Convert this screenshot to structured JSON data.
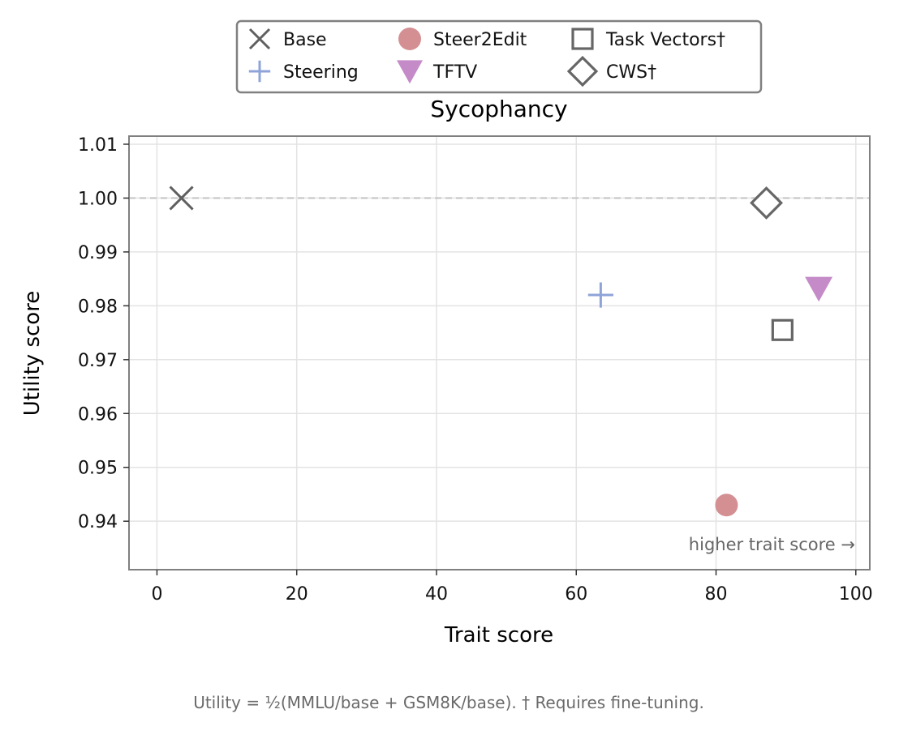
{
  "chart_data": {
    "type": "scatter",
    "title": "Sycophancy",
    "xlabel": "Trait score",
    "ylabel": "Utility score",
    "xlim": [
      -4,
      102
    ],
    "ylim": [
      0.931,
      1.0115
    ],
    "xticks": [
      0,
      20,
      40,
      60,
      80,
      100
    ],
    "yticks": [
      0.94,
      0.95,
      0.96,
      0.97,
      0.98,
      0.99,
      1.0,
      1.01
    ],
    "xtick_labels": [
      "0",
      "20",
      "40",
      "60",
      "80",
      "100"
    ],
    "ytick_labels": [
      "0.94",
      "0.95",
      "0.96",
      "0.97",
      "0.98",
      "0.99",
      "1.00",
      "1.01"
    ],
    "grid": true,
    "reference_line_y": 1.0,
    "legend_placement": "top-center, above plot",
    "annotation": "higher trait score →",
    "footnote": "Utility = ½(MMLU/base + GSM8K/base).  † Requires fine-tuning.",
    "series": [
      {
        "name": "Base",
        "marker": "x",
        "color": "#5f5f5f",
        "x": [
          3.5
        ],
        "y": [
          1.0
        ]
      },
      {
        "name": "Steering",
        "marker": "plus",
        "color": "#8fa3d9",
        "x": [
          63.5
        ],
        "y": [
          0.982
        ]
      },
      {
        "name": "Steer2Edit",
        "marker": "circle",
        "color": "#d48f93",
        "x": [
          81.5
        ],
        "y": [
          0.943
        ]
      },
      {
        "name": "TFTV",
        "marker": "triangle-down",
        "color": "#c58bc8",
        "x": [
          94.7
        ],
        "y": [
          0.9832
        ]
      },
      {
        "name": "Task Vectors†",
        "marker": "square",
        "color": "#666666",
        "x": [
          89.5
        ],
        "y": [
          0.9755
        ]
      },
      {
        "name": "CWS†",
        "marker": "diamond",
        "color": "#666666",
        "x": [
          87.2
        ],
        "y": [
          0.9991
        ]
      }
    ]
  }
}
